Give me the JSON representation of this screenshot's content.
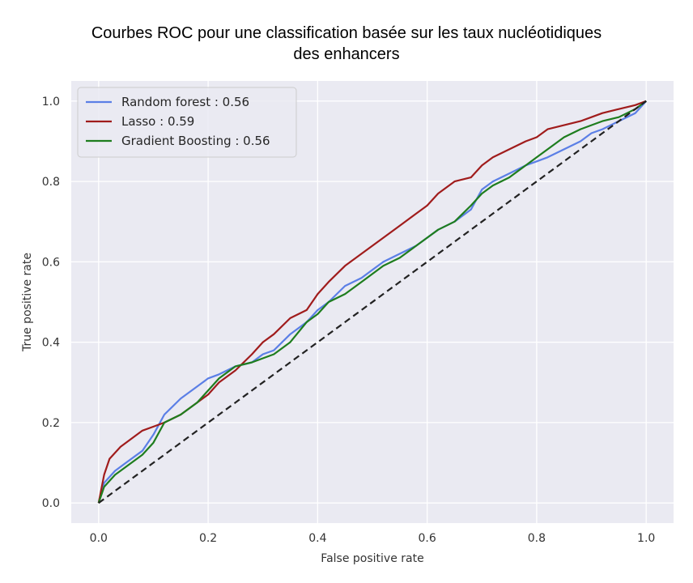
{
  "chart_data": {
    "type": "line",
    "title_line1": "Courbes ROC pour une classification basée sur les taux nucléotidiques",
    "title_line2": "des enhancers",
    "xlabel": "False positive rate",
    "ylabel": "True positive rate",
    "xlim": [
      -0.05,
      1.05
    ],
    "ylim": [
      -0.05,
      1.05
    ],
    "xticks": [
      0.0,
      0.2,
      0.4,
      0.6,
      0.8,
      1.0
    ],
    "xtick_labels": [
      "0.0",
      "0.2",
      "0.4",
      "0.6",
      "0.8",
      "1.0"
    ],
    "yticks": [
      0.0,
      0.2,
      0.4,
      0.6,
      0.8,
      1.0
    ],
    "ytick_labels": [
      "0.0",
      "0.2",
      "0.4",
      "0.6",
      "0.8",
      "1.0"
    ],
    "grid": true,
    "legend_position": "top-left",
    "background": "#eaeaf2",
    "series": [
      {
        "name": "Random forest : 0.56",
        "color": "#5b7fe6",
        "x": [
          0.0,
          0.01,
          0.03,
          0.05,
          0.08,
          0.1,
          0.12,
          0.15,
          0.18,
          0.2,
          0.22,
          0.25,
          0.28,
          0.3,
          0.32,
          0.35,
          0.38,
          0.4,
          0.42,
          0.45,
          0.48,
          0.5,
          0.52,
          0.55,
          0.58,
          0.6,
          0.62,
          0.65,
          0.68,
          0.7,
          0.72,
          0.75,
          0.78,
          0.8,
          0.82,
          0.85,
          0.88,
          0.9,
          0.92,
          0.95,
          0.98,
          1.0
        ],
        "y": [
          0.0,
          0.05,
          0.08,
          0.1,
          0.13,
          0.17,
          0.22,
          0.26,
          0.29,
          0.31,
          0.32,
          0.34,
          0.35,
          0.37,
          0.38,
          0.42,
          0.45,
          0.48,
          0.5,
          0.54,
          0.56,
          0.58,
          0.6,
          0.62,
          0.64,
          0.66,
          0.68,
          0.7,
          0.73,
          0.78,
          0.8,
          0.82,
          0.84,
          0.85,
          0.86,
          0.88,
          0.9,
          0.92,
          0.93,
          0.95,
          0.97,
          1.0
        ]
      },
      {
        "name": "Lasso : 0.59",
        "color": "#a01c1c",
        "x": [
          0.0,
          0.01,
          0.02,
          0.04,
          0.06,
          0.08,
          0.1,
          0.12,
          0.15,
          0.18,
          0.2,
          0.22,
          0.25,
          0.28,
          0.3,
          0.32,
          0.35,
          0.38,
          0.4,
          0.42,
          0.45,
          0.48,
          0.5,
          0.52,
          0.55,
          0.58,
          0.6,
          0.62,
          0.65,
          0.68,
          0.7,
          0.72,
          0.75,
          0.78,
          0.8,
          0.82,
          0.85,
          0.88,
          0.9,
          0.92,
          0.95,
          0.98,
          1.0
        ],
        "y": [
          0.0,
          0.07,
          0.11,
          0.14,
          0.16,
          0.18,
          0.19,
          0.2,
          0.22,
          0.25,
          0.27,
          0.3,
          0.33,
          0.37,
          0.4,
          0.42,
          0.46,
          0.48,
          0.52,
          0.55,
          0.59,
          0.62,
          0.64,
          0.66,
          0.69,
          0.72,
          0.74,
          0.77,
          0.8,
          0.81,
          0.84,
          0.86,
          0.88,
          0.9,
          0.91,
          0.93,
          0.94,
          0.95,
          0.96,
          0.97,
          0.98,
          0.99,
          1.0
        ]
      },
      {
        "name": "Gradient Boosting : 0.56",
        "color": "#1e7d1e",
        "x": [
          0.0,
          0.01,
          0.03,
          0.05,
          0.08,
          0.1,
          0.12,
          0.15,
          0.18,
          0.2,
          0.22,
          0.25,
          0.28,
          0.3,
          0.32,
          0.35,
          0.38,
          0.4,
          0.42,
          0.45,
          0.48,
          0.5,
          0.52,
          0.55,
          0.58,
          0.6,
          0.62,
          0.65,
          0.68,
          0.7,
          0.72,
          0.75,
          0.78,
          0.8,
          0.82,
          0.85,
          0.88,
          0.9,
          0.92,
          0.95,
          0.98,
          1.0
        ],
        "y": [
          0.0,
          0.04,
          0.07,
          0.09,
          0.12,
          0.15,
          0.2,
          0.22,
          0.25,
          0.28,
          0.31,
          0.34,
          0.35,
          0.36,
          0.37,
          0.4,
          0.45,
          0.47,
          0.5,
          0.52,
          0.55,
          0.57,
          0.59,
          0.61,
          0.64,
          0.66,
          0.68,
          0.7,
          0.74,
          0.77,
          0.79,
          0.81,
          0.84,
          0.86,
          0.88,
          0.91,
          0.93,
          0.94,
          0.95,
          0.96,
          0.98,
          1.0
        ]
      }
    ],
    "diagonal": {
      "color": "#222222",
      "x": [
        0.0,
        1.0
      ],
      "y": [
        0.0,
        1.0
      ]
    }
  }
}
